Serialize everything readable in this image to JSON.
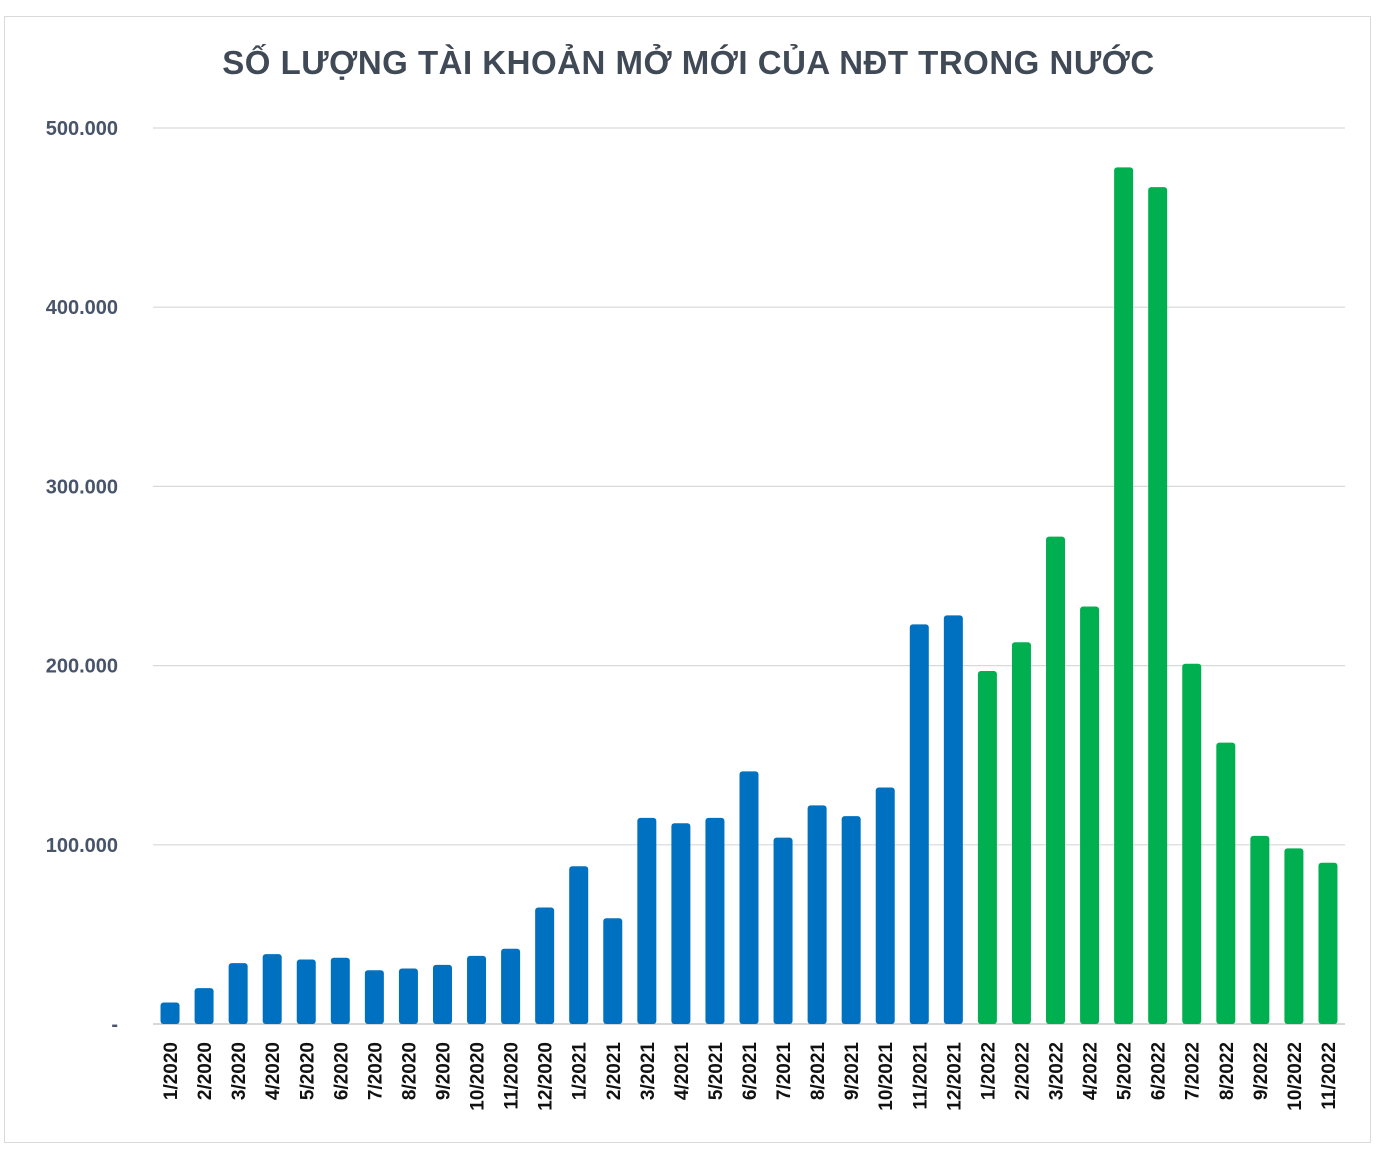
{
  "chart_data": {
    "type": "bar",
    "title": "SỐ LƯỢNG TÀI KHOẢN MỞ MỚI CỦA NĐT TRONG NƯỚC",
    "xlabel": "",
    "ylabel": "",
    "ylim": [
      0,
      500000
    ],
    "yticks": [
      {
        "value": 0,
        "label": "-"
      },
      {
        "value": 100000,
        "label": "100.000"
      },
      {
        "value": 200000,
        "label": "200.000"
      },
      {
        "value": 300000,
        "label": "300.000"
      },
      {
        "value": 400000,
        "label": "400.000"
      },
      {
        "value": 500000,
        "label": "500.000"
      }
    ],
    "grid": true,
    "colors": {
      "2020-2021": "#0070c0",
      "2022": "#00b050",
      "grid": "#d9d9d9",
      "axis": "#bfbfbf"
    },
    "categories": [
      "1/2020",
      "2/2020",
      "3/2020",
      "4/2020",
      "5/2020",
      "6/2020",
      "7/2020",
      "8/2020",
      "9/2020",
      "10/2020",
      "11/2020",
      "12/2020",
      "1/2021",
      "2/2021",
      "3/2021",
      "4/2021",
      "5/2021",
      "6/2021",
      "7/2021",
      "8/2021",
      "9/2021",
      "10/2021",
      "11/2021",
      "12/2021",
      "1/2022",
      "2/2022",
      "3/2022",
      "4/2022",
      "5/2022",
      "6/2022",
      "7/2022",
      "8/2022",
      "9/2022",
      "10/2022",
      "11/2022"
    ],
    "values": [
      12000,
      20000,
      34000,
      39000,
      36000,
      37000,
      30000,
      31000,
      33000,
      38000,
      42000,
      65000,
      88000,
      59000,
      115000,
      112000,
      115000,
      141000,
      104000,
      122000,
      116000,
      132000,
      223000,
      228000,
      197000,
      213000,
      272000,
      233000,
      478000,
      467000,
      201000,
      157000,
      105000,
      98000,
      90000
    ],
    "bar_colors": [
      "#0070c0",
      "#0070c0",
      "#0070c0",
      "#0070c0",
      "#0070c0",
      "#0070c0",
      "#0070c0",
      "#0070c0",
      "#0070c0",
      "#0070c0",
      "#0070c0",
      "#0070c0",
      "#0070c0",
      "#0070c0",
      "#0070c0",
      "#0070c0",
      "#0070c0",
      "#0070c0",
      "#0070c0",
      "#0070c0",
      "#0070c0",
      "#0070c0",
      "#0070c0",
      "#0070c0",
      "#00b050",
      "#00b050",
      "#00b050",
      "#00b050",
      "#00b050",
      "#00b050",
      "#00b050",
      "#00b050",
      "#00b050",
      "#00b050",
      "#00b050"
    ]
  }
}
